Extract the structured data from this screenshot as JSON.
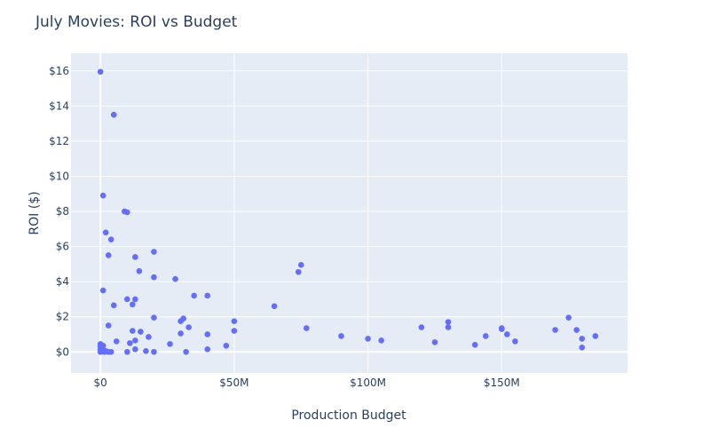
{
  "chart_data": {
    "type": "scatter",
    "title": "July Movies: ROI vs Budget",
    "xlabel": "Production Budget",
    "ylabel": "ROI ($)",
    "xlim": [
      -11000000,
      197000000
    ],
    "ylim": [
      -1.2,
      17.0
    ],
    "x_ticks": [
      {
        "value": 0,
        "label": "$0"
      },
      {
        "value": 50000000,
        "label": "$50M"
      },
      {
        "value": 100000000,
        "label": "$100M"
      },
      {
        "value": 150000000,
        "label": "$150M"
      }
    ],
    "y_ticks": [
      {
        "value": 0,
        "label": "$0"
      },
      {
        "value": 2,
        "label": "$2"
      },
      {
        "value": 4,
        "label": "$4"
      },
      {
        "value": 6,
        "label": "$6"
      },
      {
        "value": 8,
        "label": "$8"
      },
      {
        "value": 10,
        "label": "$10"
      },
      {
        "value": 12,
        "label": "$12"
      },
      {
        "value": 14,
        "label": "$14"
      },
      {
        "value": 16,
        "label": "$16"
      }
    ],
    "grid": true,
    "legend": false,
    "marker_color": "#636efa",
    "plot_background": "#e5ecf6",
    "points": [
      [
        0,
        15.95
      ],
      [
        1000000,
        8.9
      ],
      [
        2000000,
        6.8
      ],
      [
        3000000,
        5.5
      ],
      [
        4000000,
        6.4
      ],
      [
        5000000,
        13.5
      ],
      [
        9000000,
        8.0
      ],
      [
        10000000,
        7.95
      ],
      [
        13000000,
        5.4
      ],
      [
        14500000,
        4.6
      ],
      [
        20000000,
        5.7
      ],
      [
        20000000,
        4.25
      ],
      [
        28000000,
        4.15
      ],
      [
        1000000,
        3.5
      ],
      [
        5000000,
        2.65
      ],
      [
        10000000,
        3.0
      ],
      [
        12000000,
        2.7
      ],
      [
        13000000,
        3.0
      ],
      [
        35000000,
        3.2
      ],
      [
        40000000,
        3.2
      ],
      [
        3000000,
        1.5
      ],
      [
        12000000,
        1.2
      ],
      [
        15000000,
        1.15
      ],
      [
        18000000,
        0.85
      ],
      [
        20000000,
        1.95
      ],
      [
        30000000,
        1.75
      ],
      [
        31000000,
        1.9
      ],
      [
        30000000,
        1.05
      ],
      [
        33000000,
        1.4
      ],
      [
        40000000,
        1.0
      ],
      [
        6000000,
        0.6
      ],
      [
        11000000,
        0.5
      ],
      [
        13000000,
        0.65
      ],
      [
        26000000,
        0.45
      ],
      [
        47000000,
        0.35
      ],
      [
        13000000,
        0.15
      ],
      [
        17000000,
        0.05
      ],
      [
        20000000,
        0.0
      ],
      [
        10000000,
        0.0
      ],
      [
        32000000,
        0.0
      ],
      [
        40000000,
        0.15
      ],
      [
        0,
        0.45
      ],
      [
        0,
        0.3
      ],
      [
        0,
        0.15
      ],
      [
        0,
        0.0
      ],
      [
        500000,
        0.05
      ],
      [
        1000000,
        0.35
      ],
      [
        1000000,
        0.1
      ],
      [
        1500000,
        0.0
      ],
      [
        2000000,
        0.05
      ],
      [
        3000000,
        0.0
      ],
      [
        4000000,
        0.0
      ],
      [
        50000000,
        1.75
      ],
      [
        50000000,
        1.2
      ],
      [
        65000000,
        2.6
      ],
      [
        74000000,
        4.55
      ],
      [
        75000000,
        4.95
      ],
      [
        77000000,
        1.35
      ],
      [
        90000000,
        0.9
      ],
      [
        100000000,
        0.75
      ],
      [
        105000000,
        0.65
      ],
      [
        120000000,
        1.4
      ],
      [
        125000000,
        0.55
      ],
      [
        130000000,
        1.7
      ],
      [
        130000000,
        1.4
      ],
      [
        140000000,
        0.4
      ],
      [
        144000000,
        0.9
      ],
      [
        150000000,
        1.35
      ],
      [
        150000000,
        1.3
      ],
      [
        152000000,
        1.0
      ],
      [
        155000000,
        0.6
      ],
      [
        170000000,
        1.25
      ],
      [
        175000000,
        1.95
      ],
      [
        178000000,
        1.25
      ],
      [
        180000000,
        0.75
      ],
      [
        180000000,
        0.25
      ],
      [
        185000000,
        0.9
      ]
    ]
  }
}
